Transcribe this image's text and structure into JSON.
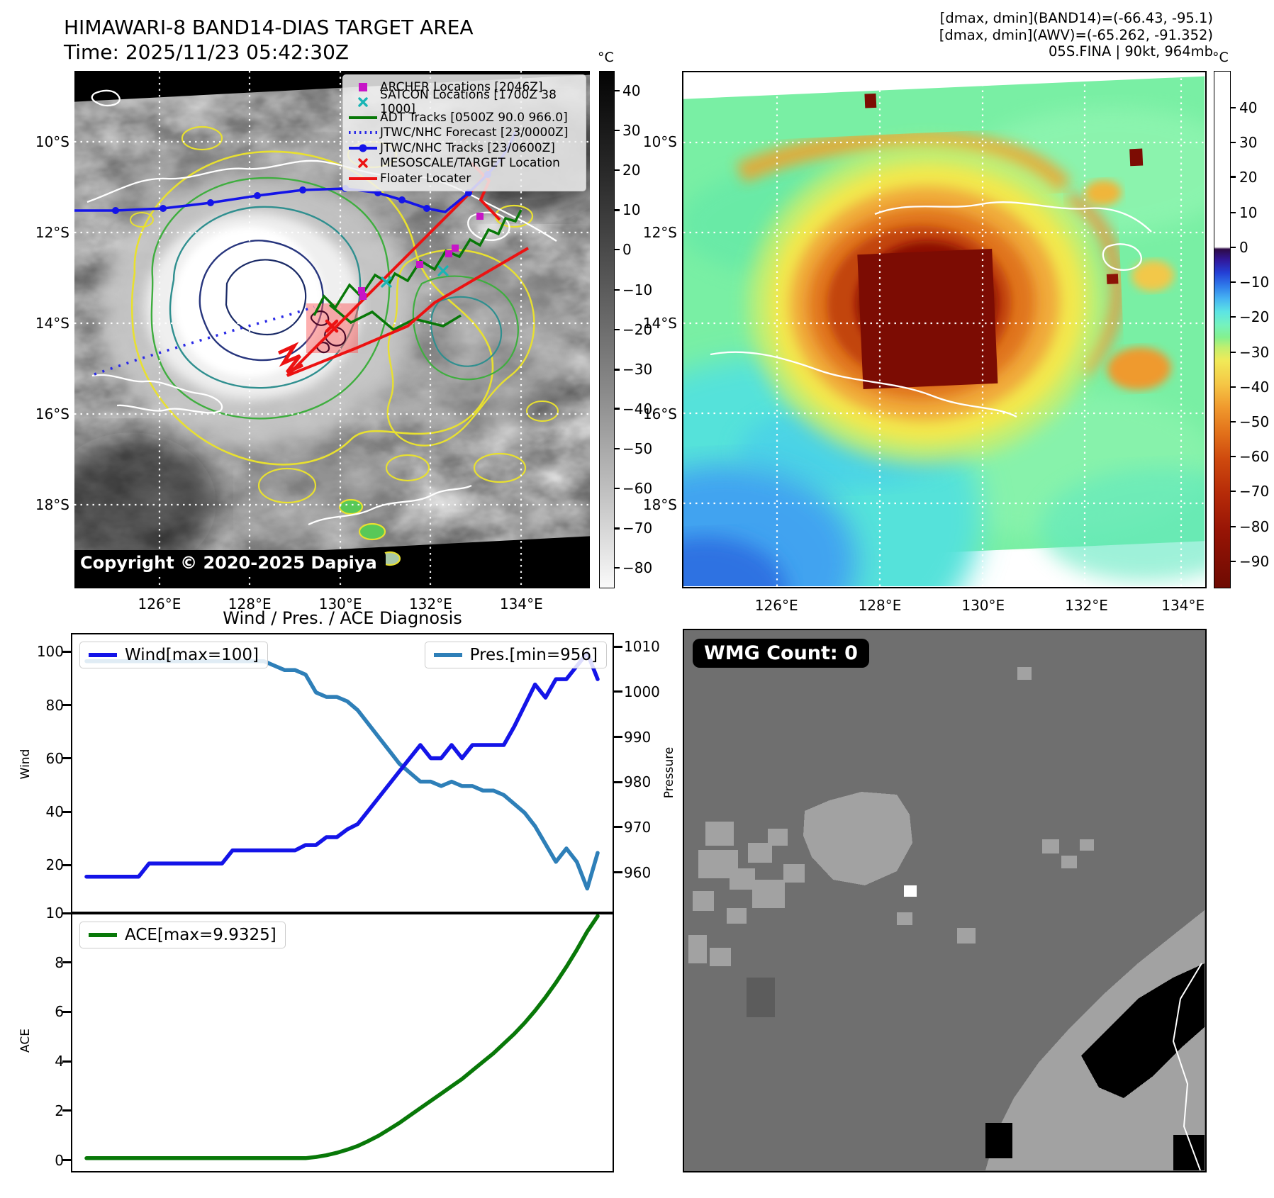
{
  "header_left": {
    "title": "HIMAWARI-8 BAND14-DIAS TARGET AREA",
    "time": "Time: 2025/11/23 05:42:30Z"
  },
  "header_right": {
    "line1": "[dmax, dmin](BAND14)=(-66.43, -95.1)",
    "line2": "[dmax, dmin](AWV)=(-65.262, -91.352)",
    "line3": "05S.FINA | 90kt, 964mb"
  },
  "band14_map": {
    "legend_items": [
      {
        "label": "ARCHER Locations [2046Z]",
        "marker": "square",
        "color": "#c715c7"
      },
      {
        "label": "SATCON Locations [1700Z 38 1000]",
        "marker": "x",
        "color": "#19b5b5"
      },
      {
        "label": "ADT Tracks [0500Z 90.0 966.0]",
        "marker": "line",
        "color": "#087808"
      },
      {
        "label": "JTWC/NHC Forecast [23/0000Z]",
        "marker": "dotted",
        "color": "#2a2ae6"
      },
      {
        "label": "JTWC/NHC Tracks [23/0600Z]",
        "marker": "line-dot",
        "color": "#1414e8"
      },
      {
        "label": "MESOSCALE/TARGET Location",
        "marker": "x",
        "color": "#ec1212"
      },
      {
        "label": "Floater Locater",
        "marker": "line",
        "color": "#ec1212"
      }
    ],
    "copyright": "Copyright © 2020-2025 Dapiya",
    "x_ticks": [
      "126°E",
      "128°E",
      "130°E",
      "132°E",
      "134°E"
    ],
    "y_ticks": [
      "10°S",
      "12°S",
      "14°S",
      "16°S",
      "18°S"
    ],
    "colorbar_unit": "°C",
    "colorbar_ticks": [
      "40",
      "30",
      "20",
      "10",
      "0",
      "−10",
      "−20",
      "−30",
      "−40",
      "−50",
      "−60",
      "−70",
      "−80"
    ]
  },
  "awv_map": {
    "x_ticks": [
      "126°E",
      "128°E",
      "130°E",
      "132°E",
      "134°E"
    ],
    "y_ticks": [
      "10°S",
      "12°S",
      "14°S",
      "16°S",
      "18°S"
    ],
    "colorbar_unit": "°C",
    "colorbar_ticks": [
      "40",
      "30",
      "20",
      "10",
      "0",
      "−10",
      "−20",
      "−30",
      "−40",
      "−50",
      "−60",
      "−70",
      "−80",
      "−90"
    ]
  },
  "diagnosis": {
    "title": "Wind / Pres. / ACE Diagnosis",
    "wind_axis_label": "Wind",
    "pressure_axis_label": "Pressure",
    "ace_axis_label": "ACE",
    "wind_yticks": [
      20,
      40,
      60,
      80,
      100
    ],
    "pressure_yticks": [
      960,
      970,
      980,
      990,
      1000,
      1010
    ],
    "ace_yticks": [
      0,
      2,
      4,
      6,
      8,
      10
    ]
  },
  "wmg": {
    "badge": "WMG Count: 0"
  },
  "chart_data": [
    {
      "type": "line",
      "title": "Wind / Pres. / ACE Diagnosis",
      "x_note": "time steps, no x tick labels shown",
      "series": [
        {
          "name": "Wind[max=100]",
          "color": "#1414e8",
          "axis": "wind",
          "values": [
            15,
            15,
            15,
            15,
            15,
            15,
            20,
            20,
            20,
            20,
            20,
            20,
            20,
            20,
            25,
            25,
            25,
            25,
            25,
            25,
            25,
            27,
            27,
            30,
            30,
            33,
            35,
            40,
            45,
            50,
            55,
            60,
            65,
            60,
            60,
            65,
            60,
            65,
            65,
            65,
            65,
            72,
            80,
            88,
            83,
            90,
            90,
            95,
            100,
            90
          ]
        },
        {
          "name": "Pres.[min=956]",
          "color": "#2e7fb8",
          "axis": "pressure",
          "values": [
            1007,
            1007,
            1007,
            1007,
            1007,
            1007,
            1007,
            1007,
            1007,
            1007,
            1007,
            1007,
            1007,
            1007,
            1007,
            1007,
            1007,
            1007,
            1006,
            1005,
            1005,
            1004,
            1000,
            999,
            999,
            998,
            996,
            993,
            990,
            987,
            984,
            982,
            980,
            980,
            979,
            980,
            979,
            979,
            978,
            978,
            977,
            975,
            973,
            970,
            966,
            962,
            965,
            962,
            956,
            964
          ]
        }
      ],
      "wind_ylim": [
        2,
        107
      ],
      "pressure_ylim": [
        951,
        1013
      ],
      "legend_position": "upper-left and upper-right"
    },
    {
      "type": "line",
      "series": [
        {
          "name": "ACE[max=9.9325]",
          "color": "#087808",
          "values": [
            0,
            0,
            0,
            0,
            0,
            0,
            0,
            0,
            0,
            0,
            0,
            0,
            0,
            0,
            0,
            0,
            0,
            0,
            0,
            0,
            0,
            0,
            0.05,
            0.12,
            0.22,
            0.35,
            0.5,
            0.7,
            0.92,
            1.18,
            1.45,
            1.75,
            2.05,
            2.35,
            2.65,
            2.95,
            3.25,
            3.6,
            3.95,
            4.3,
            4.7,
            5.1,
            5.55,
            6.05,
            6.6,
            7.2,
            7.85,
            8.55,
            9.3,
            9.9325
          ]
        }
      ],
      "ylim": [
        -0.5,
        10
      ],
      "legend_position": "upper-left"
    }
  ]
}
